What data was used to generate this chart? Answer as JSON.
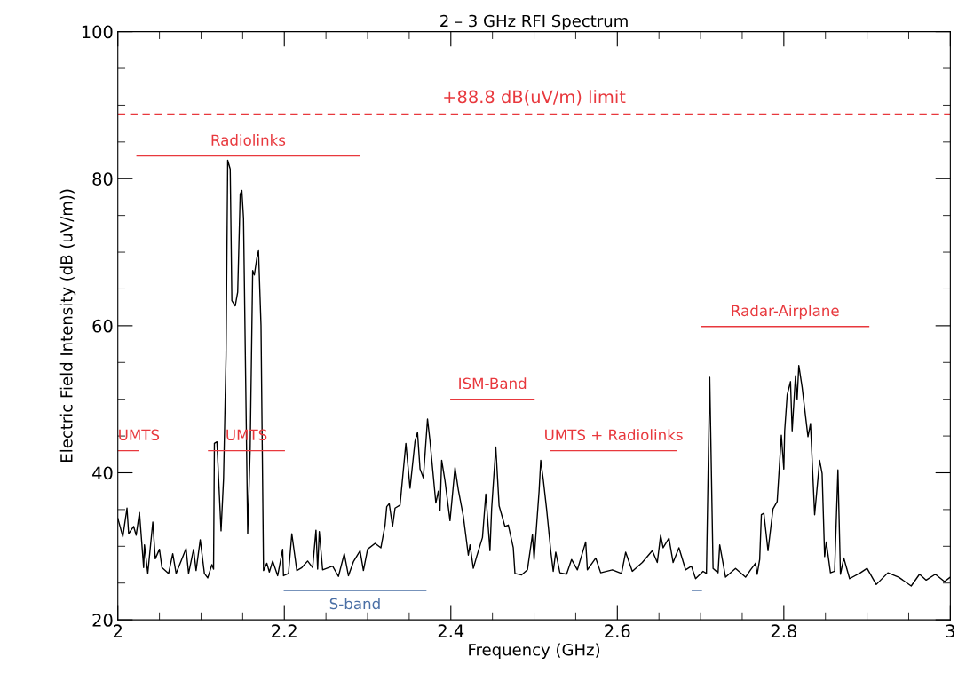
{
  "chart_data": {
    "type": "line",
    "title": "2 – 3 GHz RFI Spectrum",
    "xlabel": "Frequency (GHz)",
    "ylabel": "Electric Field Intensity (dB (uV/m))",
    "xlim": [
      2,
      3
    ],
    "ylim": [
      20,
      100
    ],
    "xticks": [
      {
        "value": 2,
        "label": "2"
      },
      {
        "value": 2.05,
        "label": null
      },
      {
        "value": 2.1,
        "label": null
      },
      {
        "value": 2.15,
        "label": null
      },
      {
        "value": 2.2,
        "label": "2.2"
      },
      {
        "value": 2.25,
        "label": null
      },
      {
        "value": 2.3,
        "label": null
      },
      {
        "value": 2.35,
        "label": null
      },
      {
        "value": 2.4,
        "label": "2.4"
      },
      {
        "value": 2.45,
        "label": null
      },
      {
        "value": 2.5,
        "label": null
      },
      {
        "value": 2.55,
        "label": null
      },
      {
        "value": 2.6,
        "label": "2.6"
      },
      {
        "value": 2.65,
        "label": null
      },
      {
        "value": 2.7,
        "label": null
      },
      {
        "value": 2.75,
        "label": null
      },
      {
        "value": 2.8,
        "label": "2.8"
      },
      {
        "value": 2.85,
        "label": null
      },
      {
        "value": 2.9,
        "label": null
      },
      {
        "value": 2.95,
        "label": null
      },
      {
        "value": 3,
        "label": "3"
      }
    ],
    "yticks": [
      {
        "value": 20,
        "label": "20"
      },
      {
        "value": 25,
        "label": null
      },
      {
        "value": 30,
        "label": null
      },
      {
        "value": 35,
        "label": null
      },
      {
        "value": 40,
        "label": "40"
      },
      {
        "value": 45,
        "label": null
      },
      {
        "value": 50,
        "label": null
      },
      {
        "value": 55,
        "label": null
      },
      {
        "value": 60,
        "label": "60"
      },
      {
        "value": 65,
        "label": null
      },
      {
        "value": 70,
        "label": null
      },
      {
        "value": 75,
        "label": null
      },
      {
        "value": 80,
        "label": "80"
      },
      {
        "value": 85,
        "label": null
      },
      {
        "value": 90,
        "label": null
      },
      {
        "value": 95,
        "label": null
      },
      {
        "value": 100,
        "label": "100"
      }
    ],
    "ref_lines": [
      {
        "axis": "y",
        "value": 88.8,
        "label": "+88.8 dB(uV/m) limit",
        "color": "#e8383d",
        "line_style": "dashed"
      }
    ],
    "series": [
      {
        "color": "#000000",
        "x": [
          2.0,
          2.006,
          2.011,
          2.013,
          2.019,
          2.022,
          2.026,
          2.031,
          2.032,
          2.036,
          2.042,
          2.045,
          2.05,
          2.053,
          2.061,
          2.066,
          2.07,
          2.082,
          2.085,
          2.091,
          2.094,
          2.099,
          2.104,
          2.108,
          2.113,
          2.115,
          2.116,
          2.119,
          2.124,
          2.127,
          2.13,
          2.132,
          2.135,
          2.137,
          2.141,
          2.144,
          2.147,
          2.149,
          2.151,
          2.156,
          2.159,
          2.162,
          2.164,
          2.167,
          2.169,
          2.172,
          2.175,
          2.179,
          2.182,
          2.186,
          2.192,
          2.198,
          2.199,
          2.205,
          2.209,
          2.215,
          2.221,
          2.228,
          2.234,
          2.238,
          2.24,
          2.242,
          2.246,
          2.258,
          2.265,
          2.272,
          2.277,
          2.283,
          2.291,
          2.295,
          2.3,
          2.309,
          2.316,
          2.321,
          2.323,
          2.326,
          2.33,
          2.333,
          2.339,
          2.346,
          2.351,
          2.357,
          2.36,
          2.363,
          2.367,
          2.372,
          2.375,
          2.382,
          2.385,
          2.387,
          2.389,
          2.393,
          2.399,
          2.405,
          2.409,
          2.415,
          2.421,
          2.423,
          2.427,
          2.431,
          2.438,
          2.442,
          2.447,
          2.449,
          2.454,
          2.458,
          2.465,
          2.469,
          2.475,
          2.477,
          2.485,
          2.492,
          2.498,
          2.5,
          2.506,
          2.508,
          2.511,
          2.515,
          2.52,
          2.523,
          2.526,
          2.531,
          2.539,
          2.545,
          2.552,
          2.562,
          2.564,
          2.574,
          2.58,
          2.594,
          2.605,
          2.61,
          2.618,
          2.63,
          2.642,
          2.648,
          2.652,
          2.655,
          2.662,
          2.667,
          2.674,
          2.682,
          2.689,
          2.694,
          2.703,
          2.707,
          2.711,
          2.715,
          2.721,
          2.723,
          2.73,
          2.742,
          2.754,
          2.76,
          2.766,
          2.768,
          2.771,
          2.773,
          2.776,
          2.781,
          2.787,
          2.792,
          2.797,
          2.8,
          2.801,
          2.804,
          2.808,
          2.81,
          2.814,
          2.816,
          2.818,
          2.822,
          2.829,
          2.832,
          2.837,
          2.843,
          2.846,
          2.849,
          2.851,
          2.856,
          2.861,
          2.865,
          2.868,
          2.872,
          2.879,
          2.892,
          2.9,
          2.911,
          2.925,
          2.938,
          2.953,
          2.963,
          2.971,
          2.982,
          2.993,
          3.0
        ],
        "values": [
          33.8,
          31.3,
          35.2,
          31.7,
          32.7,
          31.5,
          34.6,
          27.1,
          30.2,
          26.3,
          33.3,
          28.3,
          29.6,
          27.1,
          26.3,
          29.0,
          26.3,
          29.7,
          26.3,
          29.6,
          26.7,
          30.9,
          26.3,
          25.7,
          27.5,
          26.9,
          44.0,
          44.2,
          32.1,
          39.2,
          55.9,
          82.5,
          81.3,
          63.4,
          62.7,
          64.6,
          77.9,
          78.4,
          74.6,
          31.7,
          43.3,
          67.5,
          66.9,
          69.2,
          70.2,
          60.0,
          26.7,
          27.7,
          26.5,
          28.0,
          26.0,
          29.6,
          26.0,
          26.3,
          31.7,
          26.7,
          27.1,
          28.0,
          27.1,
          32.2,
          26.9,
          32.0,
          26.8,
          27.3,
          25.9,
          29.0,
          26.0,
          27.9,
          29.4,
          26.7,
          29.6,
          30.4,
          29.8,
          32.9,
          35.4,
          35.8,
          32.7,
          35.2,
          35.6,
          44.0,
          37.9,
          44.3,
          45.5,
          40.5,
          39.3,
          47.3,
          44.3,
          35.9,
          37.5,
          34.9,
          41.7,
          38.9,
          33.5,
          40.7,
          37.7,
          34.1,
          28.8,
          30.2,
          27.0,
          28.6,
          31.2,
          37.1,
          29.4,
          35.1,
          43.5,
          35.5,
          32.7,
          32.9,
          29.8,
          26.3,
          26.1,
          26.8,
          31.6,
          28.2,
          37.5,
          41.7,
          39.1,
          35.1,
          29.4,
          26.6,
          29.2,
          26.4,
          26.2,
          28.2,
          26.8,
          30.6,
          26.8,
          28.4,
          26.4,
          26.8,
          26.3,
          29.2,
          26.6,
          27.8,
          29.4,
          27.8,
          31.5,
          29.8,
          31.1,
          27.8,
          29.8,
          26.8,
          27.3,
          25.6,
          26.6,
          26.3,
          53.0,
          27.0,
          26.4,
          30.2,
          25.8,
          27.0,
          25.8,
          26.8,
          27.7,
          26.2,
          28.2,
          34.3,
          34.5,
          29.4,
          35.1,
          36.1,
          45.1,
          40.5,
          45.7,
          50.6,
          52.4,
          45.7,
          53.2,
          50.0,
          54.6,
          51.6,
          44.9,
          46.7,
          34.3,
          41.7,
          39.9,
          28.6,
          30.6,
          26.4,
          26.6,
          40.4,
          26.2,
          28.4,
          25.6,
          26.4,
          27.0,
          24.8,
          26.4,
          25.8,
          24.6,
          26.2,
          25.4,
          26.2,
          25.2,
          25.8
        ]
      },
      {
        "name": "Radiolinks",
        "color": "#e8383d",
        "x": [
          2.023,
          2.29
        ],
        "values": [
          83.1,
          83.1
        ]
      },
      {
        "name": "UMTS",
        "color": "#e8383d",
        "x": [
          2.0,
          2.025
        ],
        "values": [
          43.0,
          43.0
        ]
      },
      {
        "name": "UMTS",
        "color": "#e8383d",
        "x": [
          2.109,
          2.2
        ],
        "values": [
          43.0,
          43.0
        ]
      },
      {
        "name": "S-band",
        "color": "#4a6fa5",
        "x": [
          2.2,
          2.37
        ],
        "values": [
          24.0,
          24.0
        ]
      },
      {
        "name": "ISM-Band",
        "color": "#e8383d",
        "x": [
          2.4,
          2.5
        ],
        "values": [
          50.0,
          50.0
        ]
      },
      {
        "name": "UMTS + Radiolinks",
        "color": "#e8383d",
        "x": [
          2.52,
          2.671
        ],
        "values": [
          43.0,
          43.0
        ]
      },
      {
        "name": "Radar-Airplane",
        "color": "#e8383d",
        "x": [
          2.701,
          2.902
        ],
        "values": [
          59.9,
          59.9
        ]
      },
      {
        "color": "#4a6fa5",
        "x": [
          2.69,
          2.701
        ],
        "values": [
          24.0,
          24.0
        ]
      }
    ]
  }
}
